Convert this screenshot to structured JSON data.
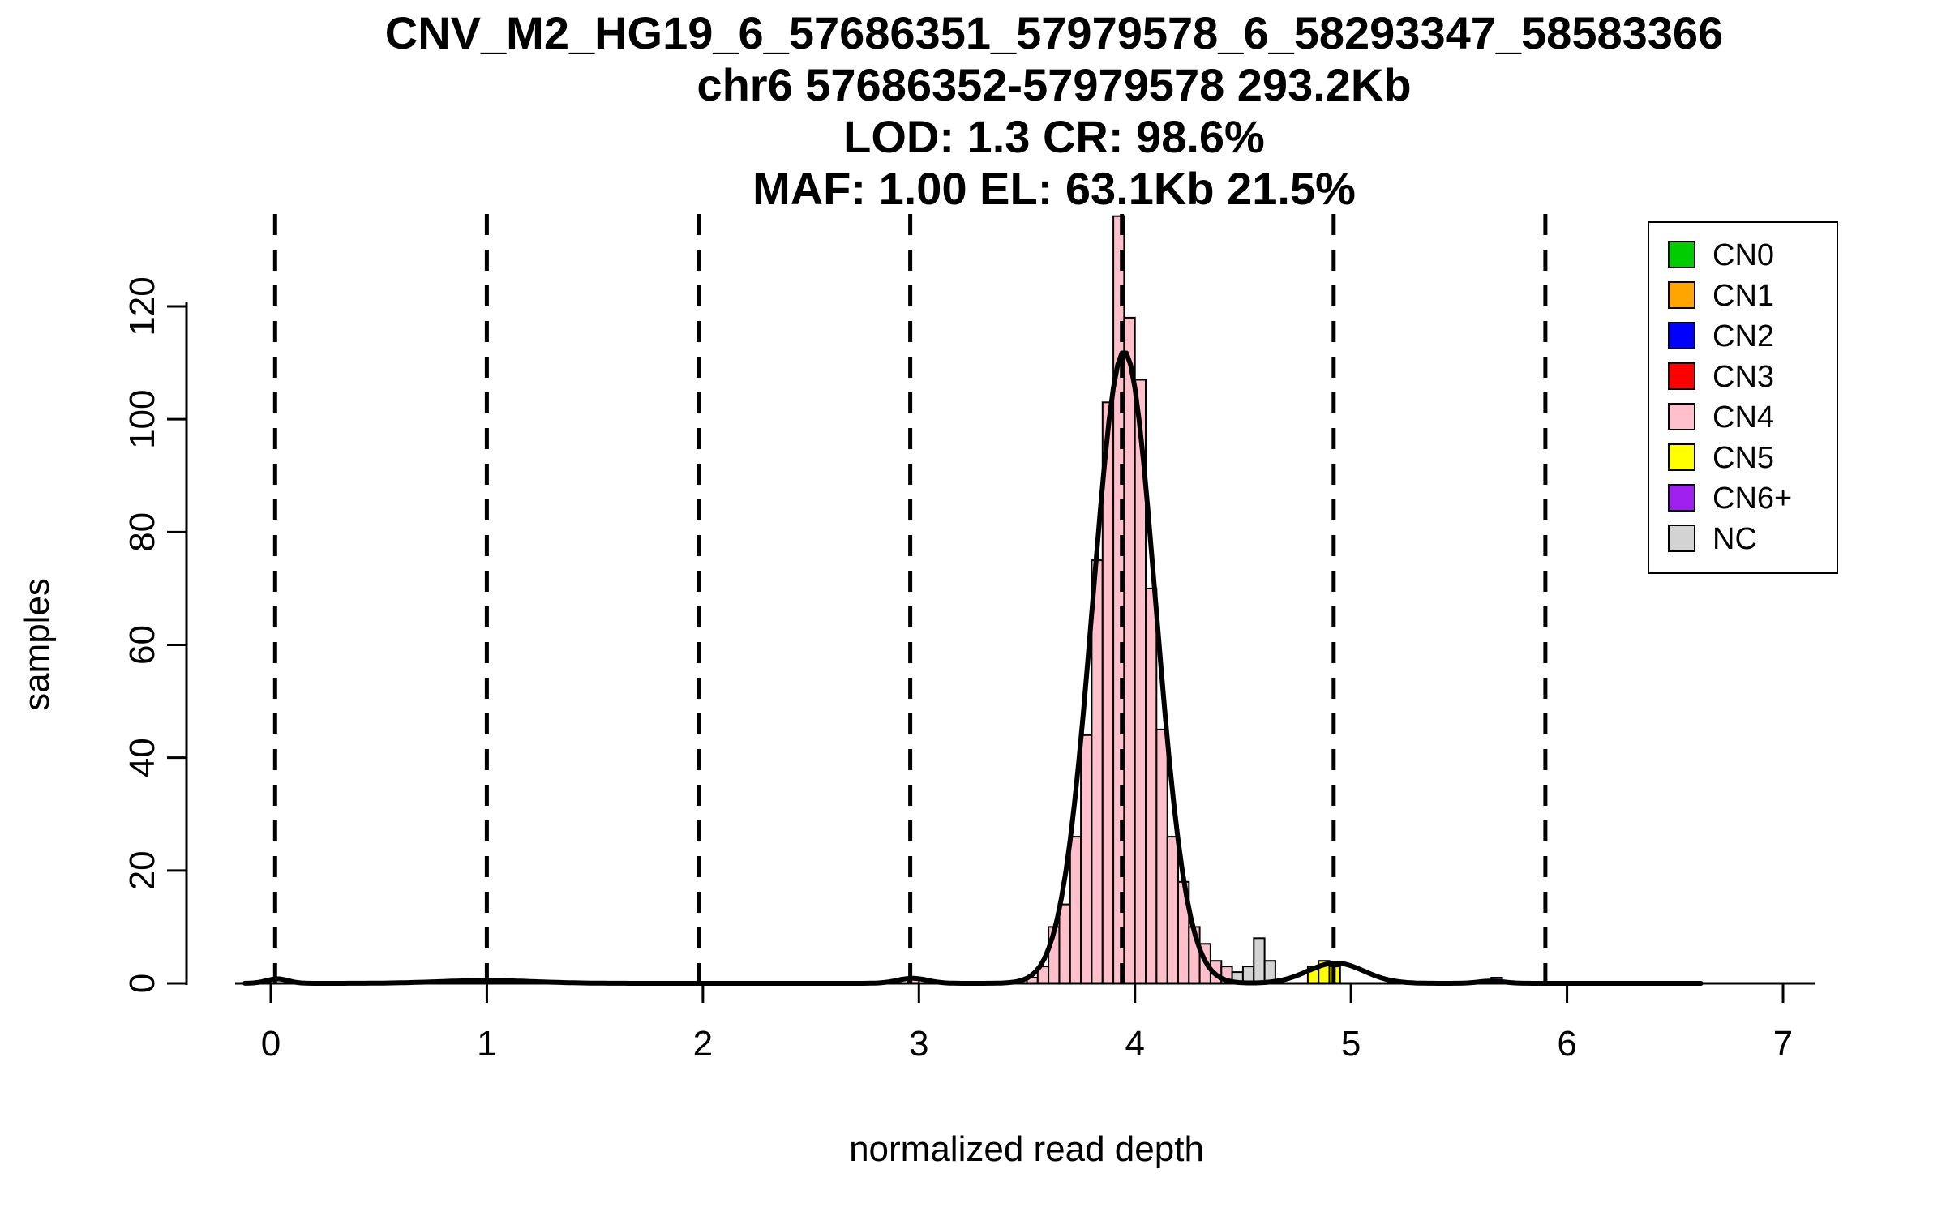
{
  "chart_data": {
    "type": "bar",
    "subtype": "histogram_with_density",
    "title_lines": [
      "CNV_M2_HG19_6_57686351_57979578_6_58293347_58583366",
      "chr6 57686352-57979578 293.2Kb",
      "LOD: 1.3 CR: 98.6%",
      "MAF: 1.00 EL: 63.1Kb 21.5%"
    ],
    "xlabel": "normalized read depth",
    "ylabel": "samples",
    "xlim": [
      -0.3,
      7.3
    ],
    "ylim": [
      0,
      137
    ],
    "x_ticks": [
      0,
      1,
      2,
      3,
      4,
      5,
      6,
      7
    ],
    "y_ticks": [
      0,
      20,
      40,
      60,
      80,
      100,
      120
    ],
    "grid": false,
    "legend_position": "top-right",
    "dashed_lines_x": [
      0.02,
      1.0,
      1.98,
      2.96,
      3.94,
      4.92,
      5.9
    ],
    "bin_width": 0.05,
    "bars": [
      {
        "x": 2.95,
        "h": 1,
        "cn": "CN4"
      },
      {
        "x": 3.5,
        "h": 1,
        "cn": "CN4"
      },
      {
        "x": 3.55,
        "h": 3,
        "cn": "CN4"
      },
      {
        "x": 3.6,
        "h": 10,
        "cn": "CN4"
      },
      {
        "x": 3.65,
        "h": 14,
        "cn": "CN4"
      },
      {
        "x": 3.7,
        "h": 26,
        "cn": "CN4"
      },
      {
        "x": 3.75,
        "h": 44,
        "cn": "CN4"
      },
      {
        "x": 3.8,
        "h": 75,
        "cn": "CN4"
      },
      {
        "x": 3.85,
        "h": 103,
        "cn": "CN4"
      },
      {
        "x": 3.9,
        "h": 136,
        "cn": "CN4"
      },
      {
        "x": 3.95,
        "h": 118,
        "cn": "CN4"
      },
      {
        "x": 4.0,
        "h": 107,
        "cn": "CN4"
      },
      {
        "x": 4.05,
        "h": 70,
        "cn": "CN4"
      },
      {
        "x": 4.1,
        "h": 45,
        "cn": "CN4"
      },
      {
        "x": 4.15,
        "h": 26,
        "cn": "CN4"
      },
      {
        "x": 4.2,
        "h": 18,
        "cn": "CN4"
      },
      {
        "x": 4.25,
        "h": 10,
        "cn": "CN4"
      },
      {
        "x": 4.3,
        "h": 7,
        "cn": "CN4"
      },
      {
        "x": 4.35,
        "h": 4,
        "cn": "CN4"
      },
      {
        "x": 4.4,
        "h": 3,
        "cn": "CN4"
      },
      {
        "x": 4.45,
        "h": 2,
        "cn": "NC"
      },
      {
        "x": 4.5,
        "h": 3,
        "cn": "NC"
      },
      {
        "x": 4.55,
        "h": 8,
        "cn": "NC"
      },
      {
        "x": 4.6,
        "h": 4,
        "cn": "NC"
      },
      {
        "x": 4.8,
        "h": 3,
        "cn": "CN5"
      },
      {
        "x": 4.85,
        "h": 4,
        "cn": "CN5"
      },
      {
        "x": 4.9,
        "h": 3,
        "cn": "CN5"
      },
      {
        "x": 5.65,
        "h": 1,
        "cn": "CN6+"
      }
    ],
    "density_components": [
      {
        "mu": 0.03,
        "sd": 0.05,
        "amp": 0.8
      },
      {
        "mu": 1.0,
        "sd": 0.22,
        "amp": 0.5
      },
      {
        "mu": 2.97,
        "sd": 0.07,
        "amp": 0.9
      },
      {
        "mu": 3.95,
        "sd": 0.145,
        "amp": 112
      },
      {
        "mu": 4.93,
        "sd": 0.13,
        "amp": 3.6
      },
      {
        "mu": 5.65,
        "sd": 0.06,
        "amp": 0.4
      }
    ],
    "density_range": [
      -0.12,
      6.62
    ],
    "legend": [
      {
        "label": "CN0",
        "color": "#00CD00"
      },
      {
        "label": "CN1",
        "color": "#FFA500"
      },
      {
        "label": "CN2",
        "color": "#0000FF"
      },
      {
        "label": "CN3",
        "color": "#FF0000"
      },
      {
        "label": "CN4",
        "color": "#FFC0CB"
      },
      {
        "label": "CN5",
        "color": "#FFFF00"
      },
      {
        "label": "CN6+",
        "color": "#A020F0"
      },
      {
        "label": "NC",
        "color": "#D3D3D3"
      }
    ],
    "colors": {
      "CN0": "#00CD00",
      "CN1": "#FFA500",
      "CN2": "#0000FF",
      "CN3": "#FF0000",
      "CN4": "#FFC0CB",
      "CN5": "#FFFF00",
      "CN6+": "#A020F0",
      "NC": "#D3D3D3"
    },
    "line_color": "#000000",
    "bar_stroke_color": "#000000"
  }
}
